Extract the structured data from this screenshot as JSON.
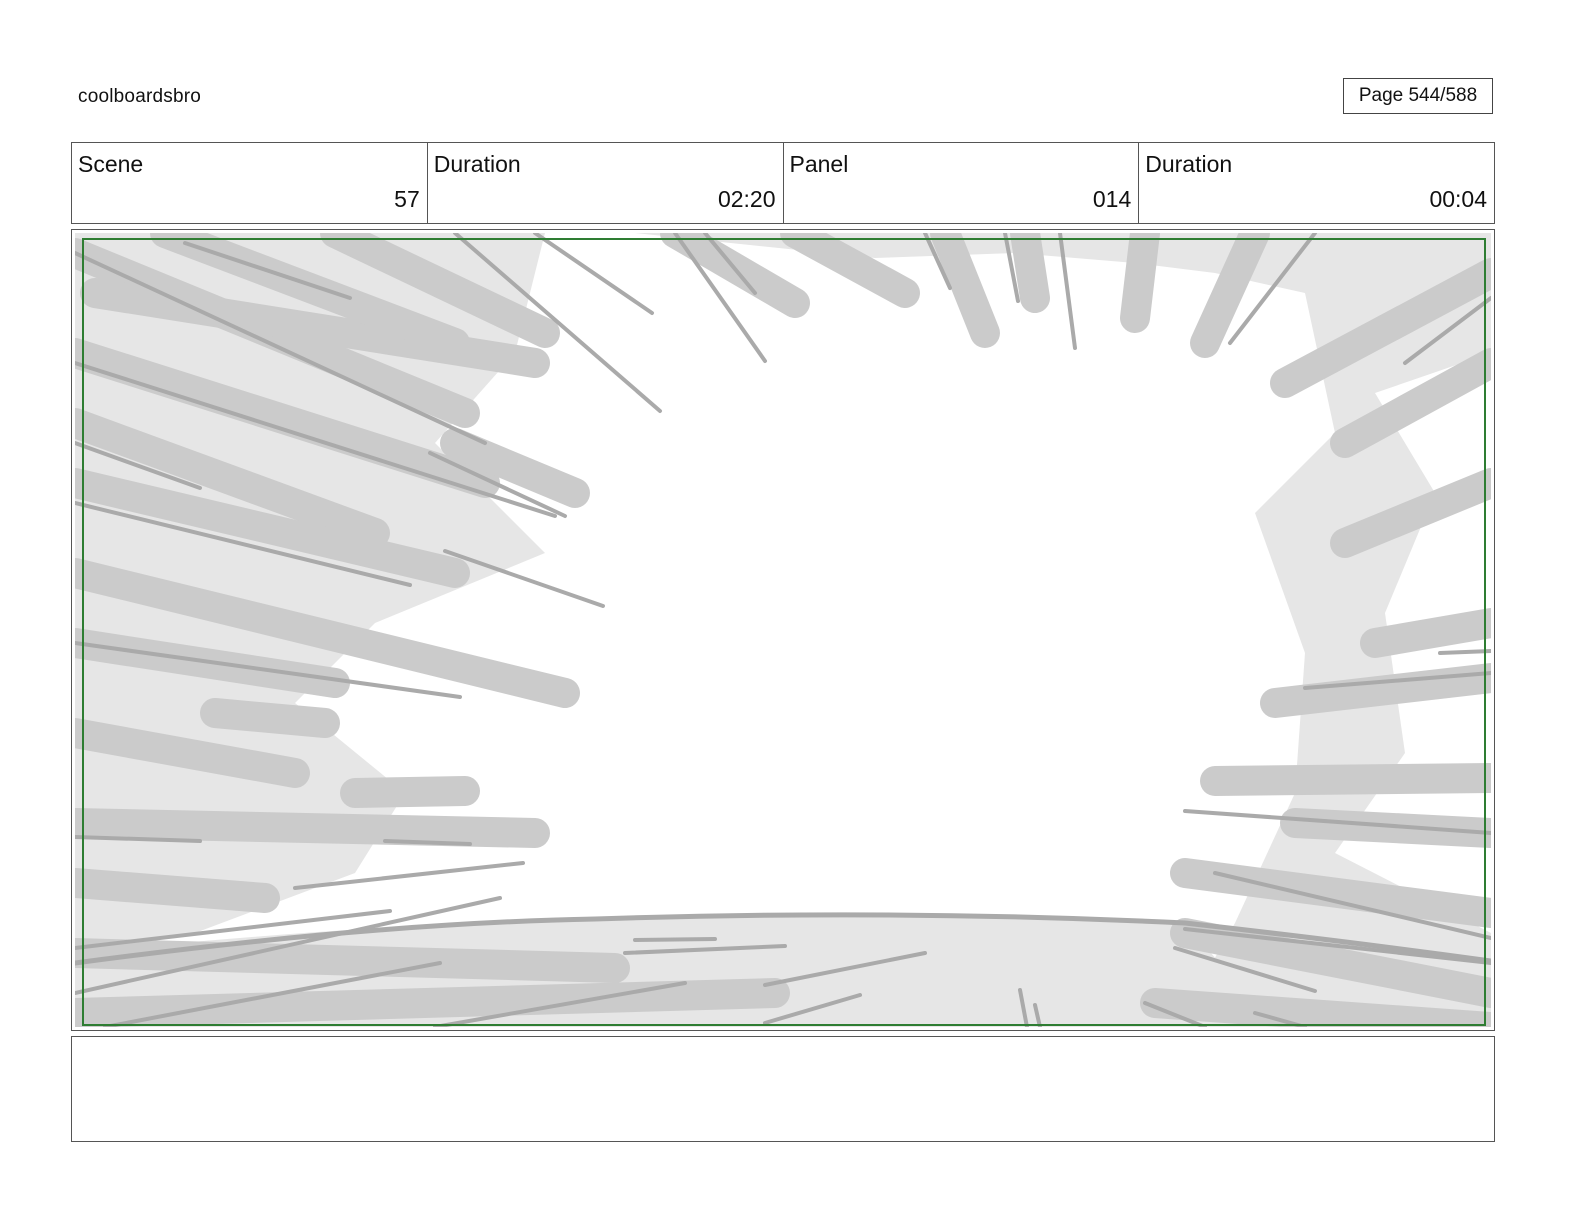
{
  "header": {
    "project_name": "coolboardsbro",
    "page_label": "Page 544/588"
  },
  "info": {
    "scene_label": "Scene",
    "scene_value": "57",
    "scene_duration_label": "Duration",
    "scene_duration_value": "02:20",
    "panel_label": "Panel",
    "panel_value": "014",
    "panel_duration_label": "Duration",
    "panel_duration_value": "00:04"
  },
  "colors": {
    "safe_frame": "#2e7d32",
    "light_gray": "#e6e6e6",
    "mid_gray": "#cbcbcb",
    "dark_gray": "#aaaaaa"
  },
  "notes": {
    "text": ""
  }
}
